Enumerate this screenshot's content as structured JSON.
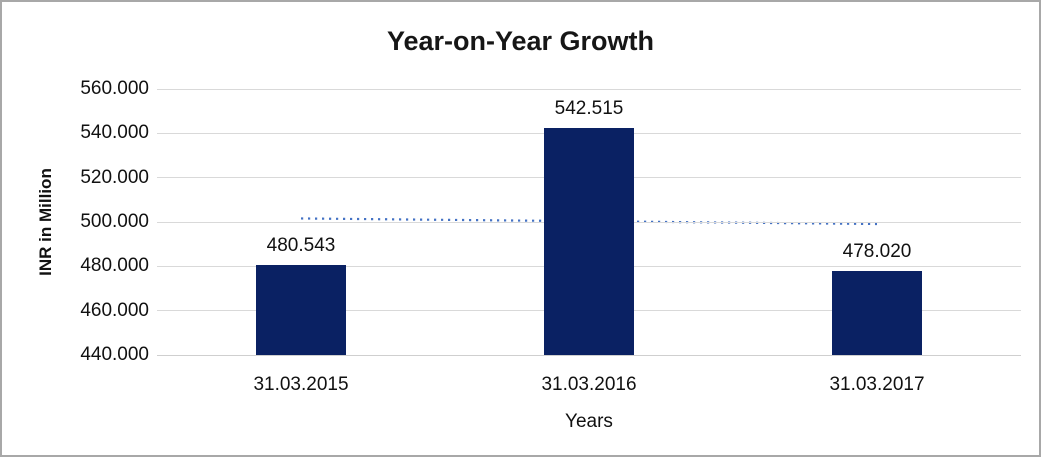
{
  "chart_data": {
    "type": "bar",
    "title": "Year-on-Year Growth",
    "xlabel": "Years",
    "ylabel": "INR in Million",
    "categories": [
      "31.03.2015",
      "31.03.2016",
      "31.03.2017"
    ],
    "values": [
      480.543,
      542.515,
      478.02
    ],
    "value_labels": [
      "480.543",
      "542.515",
      "478.020"
    ],
    "ylim": [
      440,
      560
    ],
    "ytick_step": 20,
    "ytick_labels": [
      "440.000",
      "460.000",
      "480.000",
      "500.000",
      "520.000",
      "540.000",
      "560.000"
    ],
    "grid": true,
    "legend": "none",
    "trendline": {
      "type": "linear",
      "style": "dotted",
      "start_value": 501.6,
      "end_value": 499.1
    },
    "colors": {
      "bar": "#0A2163",
      "trendline": "#4472C4",
      "gridline": "#D9D9D9",
      "axis_line": "#CFCFCF",
      "text": "#111111",
      "title_text": "#161616",
      "border": "#A8A8A8",
      "background": "#FFFFFF"
    }
  }
}
